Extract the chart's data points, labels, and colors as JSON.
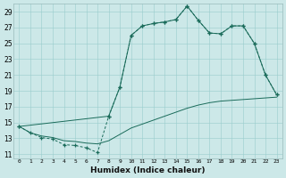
{
  "xlabel": "Humidex (Indice chaleur)",
  "bg_color": "#cce8e8",
  "line_color": "#1a6b5a",
  "xlim": [
    -0.5,
    23.5
  ],
  "ylim": [
    10.5,
    30.0
  ],
  "xtick_labels": [
    "0",
    "1",
    "2",
    "3",
    "4",
    "5",
    "6",
    "7",
    "8",
    "9",
    "10",
    "11",
    "12",
    "13",
    "14",
    "15",
    "16",
    "17",
    "18",
    "19",
    "20",
    "21",
    "22",
    "23"
  ],
  "yticks": [
    11,
    13,
    15,
    17,
    19,
    21,
    23,
    25,
    27,
    29
  ],
  "line1_x": [
    0,
    1,
    2,
    3,
    4,
    5,
    6,
    7,
    8,
    9,
    10,
    11,
    12,
    13,
    14,
    15,
    16,
    17,
    18,
    19,
    20,
    21,
    22,
    23
  ],
  "line1_y": [
    14.5,
    13.7,
    13.1,
    12.9,
    12.2,
    12.1,
    11.8,
    11.2,
    15.8,
    19.5,
    26.0,
    27.2,
    27.5,
    27.7,
    28.0,
    29.7,
    27.9,
    26.3,
    26.2,
    27.2,
    27.2,
    25.0,
    21.0,
    18.5
  ],
  "line2_x": [
    0,
    8,
    9,
    10,
    11,
    12,
    13,
    14,
    15,
    16,
    17,
    18,
    19,
    20,
    21,
    22,
    23
  ],
  "line2_y": [
    14.5,
    15.8,
    19.5,
    26.0,
    27.2,
    27.5,
    27.7,
    28.0,
    29.7,
    27.9,
    26.3,
    26.2,
    27.2,
    27.2,
    25.0,
    21.0,
    18.5
  ],
  "line3_x": [
    0,
    1,
    2,
    3,
    4,
    5,
    6,
    7,
    8,
    9,
    10,
    11,
    12,
    13,
    14,
    15,
    16,
    17,
    18,
    19,
    20,
    21,
    22,
    23
  ],
  "line3_y": [
    14.5,
    13.7,
    13.3,
    13.1,
    12.7,
    12.6,
    12.4,
    12.3,
    12.7,
    13.5,
    14.3,
    14.8,
    15.3,
    15.8,
    16.3,
    16.8,
    17.2,
    17.5,
    17.7,
    17.8,
    17.9,
    18.0,
    18.1,
    18.2
  ]
}
